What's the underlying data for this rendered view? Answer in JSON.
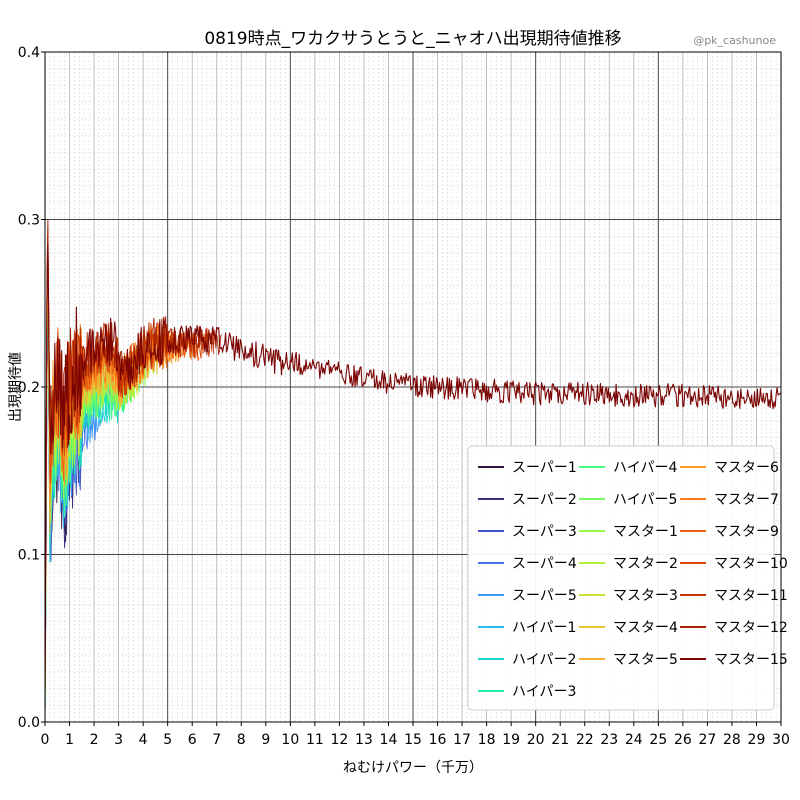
{
  "chart_data": {
    "type": "line",
    "title": "0819時点_ワカクサうとうと_ニャオハ出現期待値推移",
    "credit": "@pk_cashunoe",
    "xlabel": "ねむけパワー（千万）",
    "ylabel": "出現期待値",
    "xlim": [
      0,
      30
    ],
    "ylim": [
      0,
      0.4
    ],
    "x_ticks": [
      0,
      1,
      2,
      3,
      4,
      5,
      6,
      7,
      8,
      9,
      10,
      11,
      12,
      13,
      14,
      15,
      16,
      17,
      18,
      19,
      20,
      21,
      22,
      23,
      24,
      25,
      26,
      27,
      28,
      29,
      30
    ],
    "x_tick_labels": [
      "0",
      "1",
      "2",
      "3",
      "4",
      "5",
      "6",
      "7",
      "8",
      "9",
      "10",
      "11",
      "12",
      "13",
      "14",
      "15",
      "16",
      "17",
      "18",
      "19",
      "20",
      "21",
      "22",
      "23",
      "24",
      "25",
      "26",
      "27",
      "28",
      "29",
      "30"
    ],
    "y_ticks": [
      0,
      0.1,
      0.2,
      0.3,
      0.4
    ],
    "y_tick_labels": [
      "0.0",
      "0.1",
      "0.2",
      "0.3",
      "0.4"
    ],
    "grid": true,
    "legend_position": "lower-right",
    "trend": {
      "x": [
        0,
        0.1,
        0.2,
        0.3,
        0.5,
        0.8,
        1.0,
        1.3,
        1.6,
        2.0,
        2.5,
        3.0,
        3.5,
        4.0,
        4.5,
        5,
        6,
        7,
        8,
        9,
        10,
        11,
        12,
        13,
        14,
        15,
        16,
        17,
        18,
        19,
        20,
        22,
        24,
        26,
        28,
        30
      ],
      "y": [
        0.0,
        0.3,
        0.14,
        0.17,
        0.19,
        0.16,
        0.18,
        0.19,
        0.195,
        0.2,
        0.205,
        0.2,
        0.205,
        0.215,
        0.22,
        0.22,
        0.22,
        0.22,
        0.215,
        0.21,
        0.207,
        0.203,
        0.2,
        0.197,
        0.195,
        0.193,
        0.192,
        0.191,
        0.19,
        0.189,
        0.188,
        0.188,
        0.187,
        0.187,
        0.186,
        0.186
      ]
    },
    "series": [
      {
        "name": "スーパー1",
        "color": "#30123b"
      },
      {
        "name": "スーパー2",
        "color": "#3b2f80"
      },
      {
        "name": "スーパー3",
        "color": "#4454c4"
      },
      {
        "name": "スーパー4",
        "color": "#4675ed"
      },
      {
        "name": "スーパー5",
        "color": "#3e9bfe"
      },
      {
        "name": "ハイパー1",
        "color": "#28bceb"
      },
      {
        "name": "ハイパー2",
        "color": "#1ad5d0"
      },
      {
        "name": "ハイパー3",
        "color": "#25ebab"
      },
      {
        "name": "ハイパー4",
        "color": "#46f884"
      },
      {
        "name": "ハイパー5",
        "color": "#72fe5e"
      },
      {
        "name": "マスター1",
        "color": "#94fd4b"
      },
      {
        "name": "マスター2",
        "color": "#b5f03b"
      },
      {
        "name": "マスター3",
        "color": "#cfdf34"
      },
      {
        "name": "マスター4",
        "color": "#e6c833"
      },
      {
        "name": "マスター5",
        "color": "#f6ae35"
      },
      {
        "name": "マスター6",
        "color": "#fd9a2a"
      },
      {
        "name": "マスター7",
        "color": "#fa7a1b"
      },
      {
        "name": "マスター9",
        "color": "#ed5d0e"
      },
      {
        "name": "マスター10",
        "color": "#db4606"
      },
      {
        "name": "マスター11",
        "color": "#c33202"
      },
      {
        "name": "マスター12",
        "color": "#a52001"
      },
      {
        "name": "マスター15",
        "color": "#7a0403"
      }
    ]
  }
}
